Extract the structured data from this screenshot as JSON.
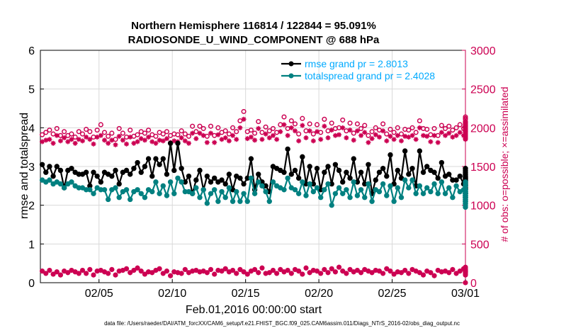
{
  "chart_data": {
    "type": "line",
    "title": [
      "Northern Hemisphere 116814 / 122844 = 95.091%",
      "RADIOSONDE_U_WIND_COMPONENT @ 688 hPa"
    ],
    "xlabel": "Feb.01,2016 00:00:00 start",
    "ylabel": "rmse and totalspread",
    "y2label": "# of obs: o=possible; ×=assimilated",
    "footnote": "data file: /Users/raeder/DAI/ATM_forcXX/CAM6_setup/f.e21.FHIST_BGC.f09_025.CAM6assim.011/Diags_NTrS_2016-02/obs_diag_output.nc",
    "xlim": [
      0,
      29
    ],
    "ylim": [
      0,
      6
    ],
    "y2lim": [
      0,
      3000
    ],
    "xticks": [
      {
        "pos": 4,
        "label": "02/05"
      },
      {
        "pos": 9,
        "label": "02/10"
      },
      {
        "pos": 14,
        "label": "02/15"
      },
      {
        "pos": 19,
        "label": "02/20"
      },
      {
        "pos": 24,
        "label": "02/25"
      },
      {
        "pos": 29,
        "label": "03/01"
      }
    ],
    "yticks": [
      "0",
      "1",
      "2",
      "3",
      "4",
      "5",
      "6"
    ],
    "y2ticks": [
      "0",
      "500",
      "1000",
      "1500",
      "2000",
      "2500",
      "3000"
    ],
    "legend": [
      "rmse grand pr = 2.8013",
      "totalspread grand pr = 2.4028"
    ],
    "legend_location": "top-right",
    "grid": true,
    "step_days": 0.25,
    "series": [
      {
        "name": "rmse",
        "axis": "left",
        "color": "#000000",
        "values": [
          3.05,
          2.85,
          3.0,
          2.75,
          3.0,
          2.9,
          2.45,
          2.9,
          2.95,
          2.85,
          2.8,
          2.8,
          2.85,
          2.5,
          2.85,
          2.75,
          2.6,
          2.85,
          2.8,
          2.75,
          2.9,
          2.55,
          2.85,
          2.9,
          2.8,
          2.95,
          3.1,
          2.85,
          3.0,
          3.2,
          2.75,
          3.2,
          3.05,
          3.2,
          2.8,
          3.6,
          2.9,
          3.6,
          2.95,
          2.6,
          2.75,
          2.3,
          2.65,
          2.9,
          2.4,
          2.75,
          2.6,
          2.7,
          2.6,
          2.65,
          2.55,
          2.8,
          2.4,
          2.75,
          2.7,
          2.55,
          2.7,
          3.2,
          2.4,
          2.8,
          2.6,
          2.5,
          2.35,
          3.0,
          2.95,
          2.9,
          2.85,
          3.45,
          2.8,
          2.9,
          2.7,
          3.25,
          2.55,
          3.0,
          2.55,
          2.95,
          2.4,
          2.85,
          3.0,
          2.55,
          3.05,
          2.9,
          2.6,
          2.85,
          2.7,
          3.2,
          2.6,
          2.85,
          2.55,
          3.05,
          2.3,
          2.65,
          2.85,
          2.95,
          2.75,
          3.3,
          2.55,
          2.9,
          2.7,
          3.4,
          2.8,
          2.95,
          2.5,
          3.4,
          2.85,
          3.0,
          2.9,
          2.85,
          2.7,
          3.1,
          2.75,
          2.8,
          2.65,
          2.65,
          2.75,
          2.55,
          2.85,
          2.7,
          2.6,
          2.8,
          2.5,
          2.65,
          2.5,
          2.7,
          2.55,
          2.75,
          2.55,
          2.65,
          2.5,
          2.95,
          2.5,
          2.35,
          2.6,
          2.5,
          2.55,
          2.6,
          2.5,
          2.4,
          2.55,
          2.3,
          2.5,
          2.6,
          2.5,
          2.9,
          2.55,
          2.45,
          2.3,
          2.5,
          2.7,
          2.45,
          2.65,
          2.4,
          2.6,
          2.45,
          2.7,
          2.75,
          2.55,
          2.6,
          2.3,
          2.45,
          2.55,
          2.65,
          2.55,
          2.4,
          2.3,
          2.4,
          2.75,
          2.7,
          2.65,
          2.8,
          2.3
        ]
      },
      {
        "name": "totalspread",
        "axis": "left",
        "color": "#008080",
        "values": [
          2.65,
          2.6,
          2.65,
          2.55,
          2.6,
          2.55,
          2.45,
          2.55,
          2.6,
          2.5,
          2.45,
          2.45,
          2.4,
          2.4,
          2.3,
          2.45,
          2.4,
          2.4,
          2.15,
          2.4,
          2.45,
          2.2,
          2.35,
          2.4,
          2.15,
          2.35,
          2.4,
          2.3,
          2.2,
          2.4,
          2.35,
          2.6,
          2.3,
          2.5,
          2.25,
          2.6,
          2.3,
          2.7,
          2.6,
          2.35,
          2.35,
          2.3,
          2.45,
          2.2,
          2.4,
          2.05,
          2.3,
          2.4,
          2.1,
          2.35,
          2.2,
          2.45,
          2.1,
          2.35,
          2.1,
          2.3,
          2.1,
          2.7,
          2.3,
          2.6,
          2.5,
          2.35,
          2.1,
          2.6,
          2.5,
          2.45,
          2.4,
          2.7,
          2.45,
          2.4,
          2.3,
          2.6,
          2.25,
          2.55,
          2.35,
          2.45,
          2.2,
          2.4,
          2.55,
          2.0,
          2.3,
          2.45,
          2.3,
          2.4,
          2.2,
          2.6,
          2.25,
          2.4,
          2.2,
          2.55,
          2.1,
          2.4,
          2.35,
          2.55,
          2.25,
          2.5,
          2.1,
          2.45,
          2.2,
          2.65,
          2.45,
          2.65,
          2.3,
          2.5,
          2.3,
          2.45,
          2.35,
          2.55,
          2.3,
          2.6,
          2.3,
          2.45,
          2.2,
          2.5,
          2.35,
          2.4,
          2.3,
          2.5,
          2.25,
          2.4,
          2.3,
          2.4,
          2.35,
          2.55,
          2.3,
          2.6,
          2.2,
          2.5,
          2.25,
          2.4,
          2.3,
          2.3,
          2.1,
          2.3,
          2.15,
          2.4,
          2.2,
          2.3,
          2.15,
          2.35,
          2.0,
          2.3,
          2.2,
          2.5,
          2.15,
          2.4,
          2.05,
          2.35,
          2.3,
          2.25,
          2.3,
          2.05,
          2.25,
          2.15,
          2.35,
          2.35,
          2.3,
          2.2,
          2.2,
          2.25,
          2.1,
          2.35,
          2.05,
          2.2,
          2.1,
          2.3,
          2.35,
          2.25,
          2.2,
          2.1,
          1.95
        ]
      },
      {
        "name": "obs possible",
        "axis": "right",
        "color": "#cc0052",
        "marker": "o",
        "values": [
          1910,
          1940,
          1970,
          1920,
          1990,
          1900,
          1950,
          1900,
          1920,
          1880,
          1950,
          1920,
          1980,
          1950,
          1880,
          1970,
          2040,
          1940,
          1890,
          1930,
          1850,
          1990,
          1930,
          1880,
          1970,
          1890,
          1910,
          1950,
          1930,
          1970,
          1910,
          1890,
          1940,
          1920,
          1950,
          1900,
          1920,
          1910,
          1960,
          1920,
          1890,
          2020,
          1950,
          2020,
          1990,
          1890,
          2020,
          1900,
          2000,
          1940,
          1960,
          1920,
          2000,
          1950,
          2090,
          2210,
          1950,
          1970,
          1930,
          2080,
          1940,
          2010,
          1960,
          1990,
          1940,
          2040,
          2140,
          1990,
          2090,
          2050,
          1920,
          2120,
          1960,
          2050,
          1920,
          2040,
          1940,
          2110,
          1960,
          2060,
          1990,
          2000,
          2100,
          1960,
          2060,
          1930,
          2050,
          1990,
          2030,
          1900,
          1950,
          2000,
          1970,
          2050,
          1920,
          1980,
          1940,
          2000,
          1920,
          1980,
          1970,
          2000,
          1940,
          2090,
          1990,
          1980,
          1910,
          1990,
          1900,
          2030,
          1990,
          2020,
          1970,
          2000,
          2040,
          1990,
          2110,
          2030,
          2010,
          2140,
          2000,
          2060,
          1990,
          2020,
          2070,
          1990,
          2050,
          1960,
          2030,
          2000,
          1980,
          1960,
          1940,
          1990,
          1980,
          2060,
          1980,
          1990,
          1960,
          2020,
          2040,
          2120,
          2060,
          2080,
          2040,
          2060,
          2000,
          2020,
          1970,
          2020,
          1950,
          2040,
          1980,
          2020,
          1950,
          2000,
          1950,
          2000,
          1990,
          1950,
          2000,
          2030,
          1980,
          1950,
          2000,
          2060,
          1990,
          2020,
          1950,
          1960
        ]
      },
      {
        "name": "obs assimilated",
        "axis": "right",
        "color": "#cc0052",
        "marker": "x",
        "values": [
          1820,
          1840,
          1850,
          1800,
          1900,
          1830,
          1870,
          1820,
          1850,
          1800,
          1850,
          1830,
          1880,
          1850,
          1790,
          1880,
          1900,
          1840,
          1800,
          1840,
          1780,
          1890,
          1840,
          1790,
          1880,
          1800,
          1820,
          1860,
          1840,
          1880,
          1820,
          1800,
          1840,
          1830,
          1860,
          1810,
          1830,
          1820,
          1870,
          1830,
          1800,
          1930,
          1860,
          1930,
          1900,
          1810,
          1930,
          1810,
          1910,
          1850,
          1870,
          1830,
          1900,
          1850,
          2000,
          2110,
          1860,
          1880,
          1840,
          1990,
          1850,
          1920,
          1870,
          1900,
          1850,
          1950,
          2040,
          1900,
          2000,
          1960,
          1830,
          2030,
          1870,
          1960,
          1830,
          1950,
          1850,
          2020,
          1870,
          1970,
          1900,
          1910,
          2000,
          1870,
          1970,
          1840,
          1960,
          1900,
          1940,
          1810,
          1860,
          1910,
          1880,
          1960,
          1830,
          1890,
          1850,
          1900,
          1830,
          1890,
          1880,
          1900,
          1850,
          2000,
          1900,
          1890,
          1820,
          1900,
          1810,
          1940,
          1900,
          1930,
          1880,
          1900,
          1940,
          1900,
          2010,
          1940,
          1920,
          2040,
          1910,
          1970,
          1900,
          1930,
          1980,
          1900,
          1960,
          1870,
          1940,
          1900,
          1890,
          1870,
          1850,
          1900,
          1890,
          1960,
          1890,
          1900,
          1870,
          1930,
          1950,
          2020,
          1960,
          1990,
          1950,
          1970,
          1910,
          1930,
          1880,
          1930,
          1860,
          1950,
          1890,
          1930,
          1860,
          1910,
          1860,
          1900,
          1900,
          1860,
          1900,
          1940,
          1890,
          1860,
          1900,
          1970,
          1900,
          1930,
          1860,
          1870
        ]
      },
      {
        "name": "obs possible (low)",
        "axis": "right",
        "color": "#cc0052",
        "marker": "o",
        "values": [
          150,
          120,
          160,
          110,
          140,
          100,
          150,
          130,
          160,
          140,
          120,
          160,
          120,
          170,
          100,
          150,
          160,
          140,
          120,
          170,
          100,
          150,
          160,
          180,
          130,
          160,
          190,
          150,
          110,
          140,
          130,
          160,
          180,
          120,
          150,
          90,
          140,
          130,
          120,
          170,
          130,
          150,
          160,
          140,
          150,
          130,
          170,
          110,
          160,
          150,
          180,
          140,
          160,
          120,
          170,
          140,
          110,
          150,
          170,
          130,
          190,
          120,
          130,
          160,
          120,
          170,
          140,
          160,
          120,
          170,
          150,
          110,
          190,
          130,
          160,
          150,
          120,
          170,
          130,
          180,
          140,
          200,
          150,
          120,
          170,
          140,
          160,
          130,
          170,
          150,
          130,
          160,
          150,
          120,
          180,
          150,
          110,
          140,
          130,
          160,
          120,
          170,
          150,
          130,
          100,
          150,
          130,
          90,
          160,
          140,
          150,
          130,
          170,
          120,
          150,
          180,
          140,
          140,
          110,
          170,
          130,
          130,
          160,
          120,
          150,
          110,
          140,
          150,
          170,
          120,
          160,
          130,
          110,
          150,
          140,
          160,
          110,
          120,
          170,
          140,
          130,
          100,
          140,
          150,
          120,
          160,
          130,
          140,
          120,
          180,
          130,
          160,
          110,
          140,
          160,
          130,
          150,
          170,
          140,
          120,
          160,
          140,
          120,
          150,
          160,
          110,
          160,
          140,
          200,
          180,
          150,
          0
        ]
      },
      {
        "name": "obs assimilated (low)",
        "axis": "right",
        "color": "#cc0052",
        "marker": "x",
        "values": [
          150,
          120,
          160,
          110,
          140,
          100,
          150,
          130,
          160,
          140,
          120,
          160,
          120,
          170,
          100,
          150,
          160,
          140,
          120,
          170,
          100,
          150,
          160,
          180,
          130,
          160,
          190,
          150,
          110,
          140,
          130,
          160,
          180,
          120,
          150,
          90,
          140,
          130,
          120,
          170,
          130,
          150,
          160,
          140,
          150,
          130,
          170,
          110,
          160,
          150,
          180,
          140,
          160,
          120,
          170,
          140,
          110,
          150,
          170,
          130,
          190,
          120,
          130,
          160,
          120,
          170,
          140,
          160,
          120,
          170,
          150,
          110,
          190,
          130,
          160,
          150,
          120,
          170,
          130,
          180,
          140,
          200,
          150,
          120,
          170,
          140,
          160,
          130,
          170,
          150,
          130,
          160,
          150,
          120,
          180,
          150,
          110,
          140,
          130,
          160,
          120,
          170,
          150,
          130,
          100,
          150,
          130,
          90,
          160,
          140,
          150,
          130,
          170,
          120,
          150,
          180,
          140,
          140,
          110,
          170,
          130,
          130,
          160,
          120,
          150,
          110,
          140,
          150,
          170,
          120,
          160,
          130,
          110,
          150,
          140,
          160,
          110,
          120,
          170,
          140,
          130,
          100,
          140,
          150,
          120,
          160,
          130,
          140,
          120,
          180,
          130,
          160,
          110,
          140,
          160,
          130,
          150,
          170,
          140,
          120,
          160,
          140,
          120,
          150,
          160,
          110,
          160,
          140,
          200,
          180,
          150,
          0
        ]
      }
    ]
  }
}
